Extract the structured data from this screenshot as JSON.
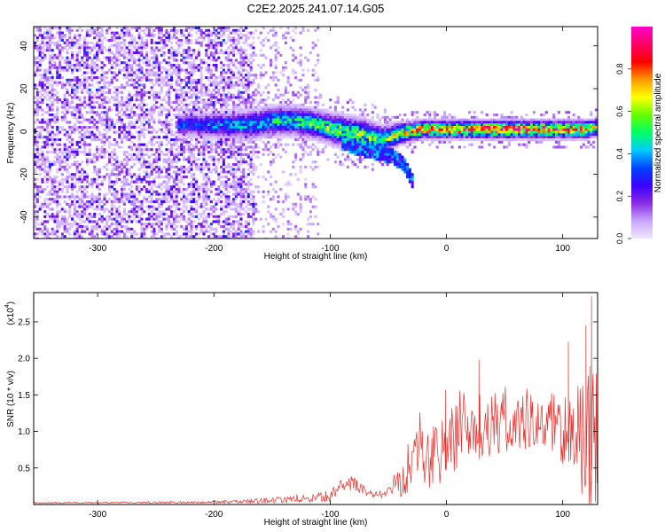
{
  "chart_data": [
    {
      "type": "heatmap",
      "title": "C2E2.2025.241.07.14.G05",
      "xlabel": "Height of straight line (km)",
      "ylabel": "Frequency (Hz)",
      "xlim": [
        -355,
        130
      ],
      "ylim": [
        -50,
        49
      ],
      "xticks": [
        -300,
        -200,
        -100,
        0,
        100
      ],
      "yticks": [
        -40,
        -20,
        0,
        20,
        40
      ],
      "colorbar": {
        "label": "Normalized spectral amplitude",
        "range": [
          0,
          1
        ],
        "ticks": [
          "0.0",
          "0.2",
          "0.4",
          "0.6",
          "0.8"
        ],
        "tick_values": [
          0.0,
          0.2,
          0.4,
          0.6,
          0.8
        ],
        "colors": [
          "#f0e6ff",
          "#c9a6ff",
          "#8a2be2",
          "#3a00ff",
          "#0044ff",
          "#00ccff",
          "#00ff66",
          "#66ff00",
          "#ffff00",
          "#ff9900",
          "#ff0000",
          "#ff0066",
          "#ff00cc"
        ]
      },
      "noise_region": {
        "x_range": [
          -355,
          -165
        ],
        "f_range": [
          -50,
          49
        ],
        "amplitude": [
          0.02,
          0.3
        ]
      },
      "transition_region": {
        "x_range": [
          -165,
          -110
        ],
        "f_range": [
          -50,
          49
        ],
        "amplitude": [
          0.01,
          0.12
        ]
      },
      "signal_ridge": {
        "x": [
          -232,
          -200,
          -170,
          -150,
          -130,
          -110,
          -90,
          -70,
          -55,
          -40,
          -20,
          0,
          20,
          40,
          60,
          80,
          100,
          120,
          130
        ],
        "center_hz": [
          3,
          3,
          3,
          5,
          5,
          3,
          0,
          -2,
          -4,
          -1,
          1,
          1,
          1,
          1,
          1,
          1,
          1,
          1,
          2
        ],
        "width_hz": [
          6,
          7,
          8,
          8,
          8,
          8,
          9,
          9,
          8,
          6,
          5,
          5,
          5,
          5,
          5,
          5,
          5,
          5,
          5
        ],
        "peak_amplitude": [
          0.35,
          0.4,
          0.45,
          0.5,
          0.55,
          0.6,
          0.6,
          0.6,
          0.6,
          0.7,
          0.85,
          0.85,
          0.9,
          0.95,
          0.95,
          0.9,
          0.9,
          0.85,
          0.7
        ]
      },
      "lower_branch": {
        "x": [
          -90,
          -75,
          -60,
          -45,
          -35,
          -28
        ],
        "f": [
          -5,
          -8,
          -10,
          -12,
          -16,
          -25
        ]
      }
    },
    {
      "type": "line",
      "xlabel": "Height of straight line (km)",
      "ylabel": "SNR (10 * v/v)",
      "scale_label": "(x10",
      "scale_exponent": "4",
      "scale_suffix": ")",
      "xlim": [
        -355,
        130
      ],
      "ylim": [
        0,
        2.9
      ],
      "xticks": [
        -300,
        -200,
        -100,
        0,
        100
      ],
      "yticks": [
        0.5,
        1.0,
        1.5,
        2.0,
        2.5
      ],
      "ytick_labels": [
        "0.5",
        "1.0",
        "1.5",
        "2.0",
        "2.5"
      ],
      "color": "#e8302c",
      "envelope": {
        "x": [
          -355,
          -200,
          -170,
          -150,
          -120,
          -100,
          -90,
          -80,
          -70,
          -60,
          -50,
          -40,
          -30,
          -20,
          -10,
          0,
          10,
          20,
          30,
          40,
          60,
          80,
          100,
          110,
          120,
          125,
          130
        ],
        "mean": [
          0.02,
          0.03,
          0.04,
          0.06,
          0.08,
          0.12,
          0.25,
          0.3,
          0.18,
          0.12,
          0.18,
          0.35,
          0.6,
          0.8,
          0.7,
          0.8,
          0.9,
          1.0,
          1.05,
          1.1,
          1.1,
          1.1,
          1.05,
          0.9,
          0.85,
          0.8,
          0.75
        ],
        "amp": [
          0.01,
          0.015,
          0.03,
          0.04,
          0.05,
          0.08,
          0.1,
          0.1,
          0.06,
          0.05,
          0.1,
          0.25,
          0.45,
          0.55,
          0.5,
          0.45,
          0.5,
          0.5,
          0.5,
          0.45,
          0.4,
          0.4,
          0.5,
          0.7,
          0.9,
          1.3,
          1.0
        ]
      },
      "spikes": [
        {
          "x": -1,
          "y": 1.57
        },
        {
          "x": 28,
          "y": 1.98
        },
        {
          "x": 105,
          "y": 2.22
        },
        {
          "x": 120,
          "y": 2.45
        },
        {
          "x": 125,
          "y": 2.85
        }
      ]
    }
  ]
}
